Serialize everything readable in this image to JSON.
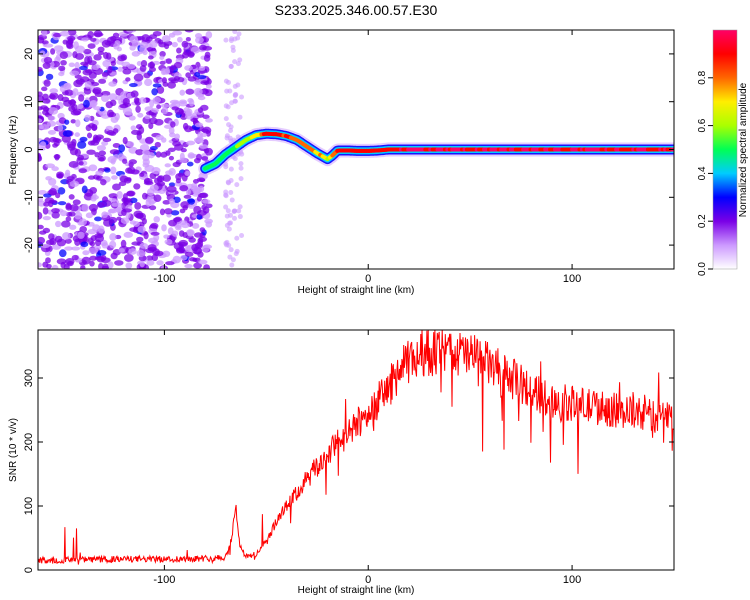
{
  "chart_data": [
    {
      "type": "heatmap",
      "title": "S233.2025.346.00.57.E30",
      "xlabel": "Height of straight line (km)",
      "ylabel": "Frequency (Hz)",
      "xlim": [
        -162,
        150
      ],
      "ylim": [
        -25,
        25
      ],
      "x_ticks": [
        -100,
        0,
        100
      ],
      "y_ticks": [
        -20,
        -10,
        0,
        10,
        20
      ],
      "colorbar": {
        "label": "Normalized spectral amplitude",
        "range": [
          0,
          1
        ],
        "ticks": [
          "0.0",
          "0.2",
          "0.4",
          "0.6",
          "0.8"
        ],
        "colors": [
          "#ffffff",
          "#cc99ff",
          "#7a00e6",
          "#0000ff",
          "#00ccff",
          "#00ff55",
          "#aaff00",
          "#ffee00",
          "#ff6600",
          "#ff0000",
          "#ff0066"
        ]
      },
      "ridge": {
        "x": [
          -80,
          -75,
          -70,
          -65,
          -60,
          -55,
          -50,
          -45,
          -40,
          -35,
          -30,
          -25,
          -20,
          -18,
          -15,
          -10,
          -5,
          0,
          5,
          10,
          20,
          40,
          60,
          80,
          100,
          120,
          140,
          150
        ],
        "frequency": [
          -4,
          -3,
          -1,
          0.5,
          2,
          3,
          3.3,
          3.2,
          2.8,
          2,
          0.6,
          -0.8,
          -2,
          -1.4,
          -0.2,
          -0.2,
          -0.3,
          -0.3,
          -0.2,
          0,
          0,
          0,
          0,
          0,
          0,
          0,
          0,
          0
        ],
        "amplitude": [
          0.5,
          0.5,
          0.5,
          0.55,
          0.6,
          0.7,
          0.9,
          0.9,
          0.85,
          0.8,
          0.8,
          0.75,
          0.65,
          0.7,
          0.85,
          0.9,
          0.9,
          0.9,
          0.9,
          0.9,
          0.95,
          0.95,
          0.95,
          0.95,
          0.95,
          0.95,
          0.95,
          0.95
        ]
      },
      "noise_region_x": [
        -162,
        -78
      ]
    },
    {
      "type": "line",
      "xlabel": "Height of straight line (km)",
      "ylabel": "SNR (10 * v/v)",
      "xlim": [
        -162,
        150
      ],
      "ylim": [
        0,
        375
      ],
      "x_ticks": [
        -100,
        0,
        100
      ],
      "y_ticks": [
        0,
        100,
        200,
        300
      ],
      "series": [
        {
          "color": "#ff0000",
          "x": [
            -162,
            -140,
            -120,
            -100,
            -80,
            -70,
            -67,
            -65,
            -63,
            -60,
            -55,
            -50,
            -45,
            -40,
            -35,
            -30,
            -25,
            -20,
            -15,
            -10,
            -5,
            0,
            5,
            10,
            15,
            20,
            25,
            30,
            40,
            50,
            60,
            70,
            80,
            90,
            100,
            110,
            120,
            130,
            140,
            150
          ],
          "values": [
            15,
            16,
            17,
            17,
            18,
            20,
            50,
            100,
            40,
            20,
            25,
            45,
            75,
            100,
            120,
            140,
            160,
            180,
            200,
            210,
            230,
            245,
            265,
            285,
            310,
            325,
            335,
            340,
            340,
            335,
            320,
            300,
            280,
            265,
            260,
            255,
            250,
            245,
            240,
            240
          ]
        }
      ]
    }
  ]
}
